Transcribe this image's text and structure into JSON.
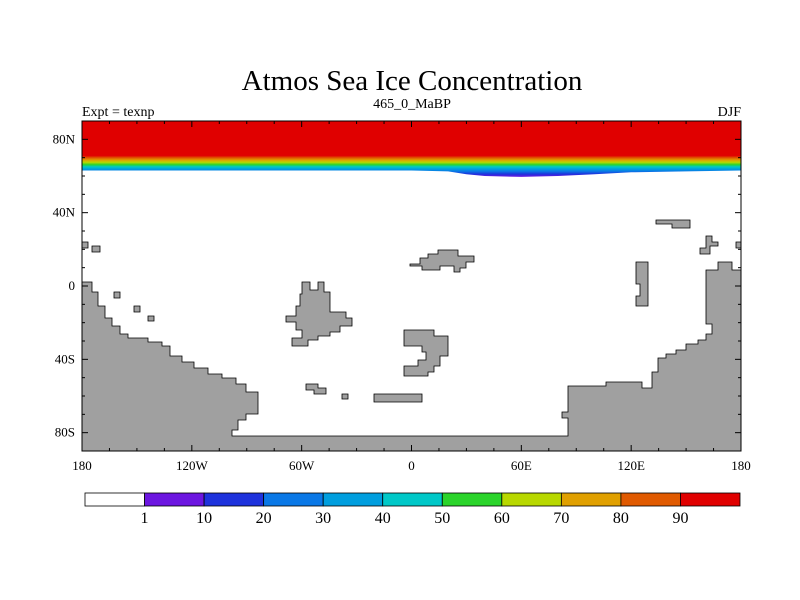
{
  "chart_data": {
    "type": "heatmap",
    "title": "Atmos Sea Ice Concentration",
    "left_string": "Expt = texnp",
    "center_string": "465_0_MaBP",
    "right_string": "DJF",
    "x_axis": {
      "range": [
        -180,
        180
      ],
      "ticks": [
        -180,
        -120,
        -60,
        0,
        60,
        120,
        180
      ],
      "tick_labels": [
        "180",
        "120W",
        "60W",
        "0",
        "60E",
        "120E",
        "180"
      ]
    },
    "y_axis": {
      "range": [
        -90,
        90
      ],
      "ticks": [
        80,
        40,
        0,
        -40,
        -80
      ],
      "tick_labels": [
        "80N",
        "40N",
        "0",
        "40S",
        "80S"
      ]
    },
    "colorbar": {
      "levels": [
        1,
        10,
        20,
        30,
        40,
        50,
        60,
        70,
        80,
        90
      ],
      "level_labels": [
        "1",
        "10",
        "20",
        "30",
        "40",
        "50",
        "60",
        "70",
        "80",
        "90"
      ],
      "colors": [
        "#ffffff",
        "#6c16e0",
        "#1e32dc",
        "#0a78e6",
        "#009ede",
        "#00c8c8",
        "#2bd42b",
        "#b8d800",
        "#e0a000",
        "#e05a00",
        "#e00000"
      ]
    },
    "sea_ice_edge_latitude": [
      {
        "lon": -180,
        "lat": 63
      },
      {
        "lon": -160,
        "lat": 63
      },
      {
        "lon": -120,
        "lat": 63
      },
      {
        "lon": -80,
        "lat": 63
      },
      {
        "lon": -40,
        "lat": 63
      },
      {
        "lon": 0,
        "lat": 63
      },
      {
        "lon": 20,
        "lat": 62.5
      },
      {
        "lon": 30,
        "lat": 61
      },
      {
        "lon": 40,
        "lat": 60
      },
      {
        "lon": 60,
        "lat": 59.5
      },
      {
        "lon": 80,
        "lat": 60
      },
      {
        "lon": 100,
        "lat": 61
      },
      {
        "lon": 120,
        "lat": 62
      },
      {
        "lon": 150,
        "lat": 62.5
      },
      {
        "lon": 180,
        "lat": 63
      }
    ],
    "land_color": "#a0a0a0"
  }
}
